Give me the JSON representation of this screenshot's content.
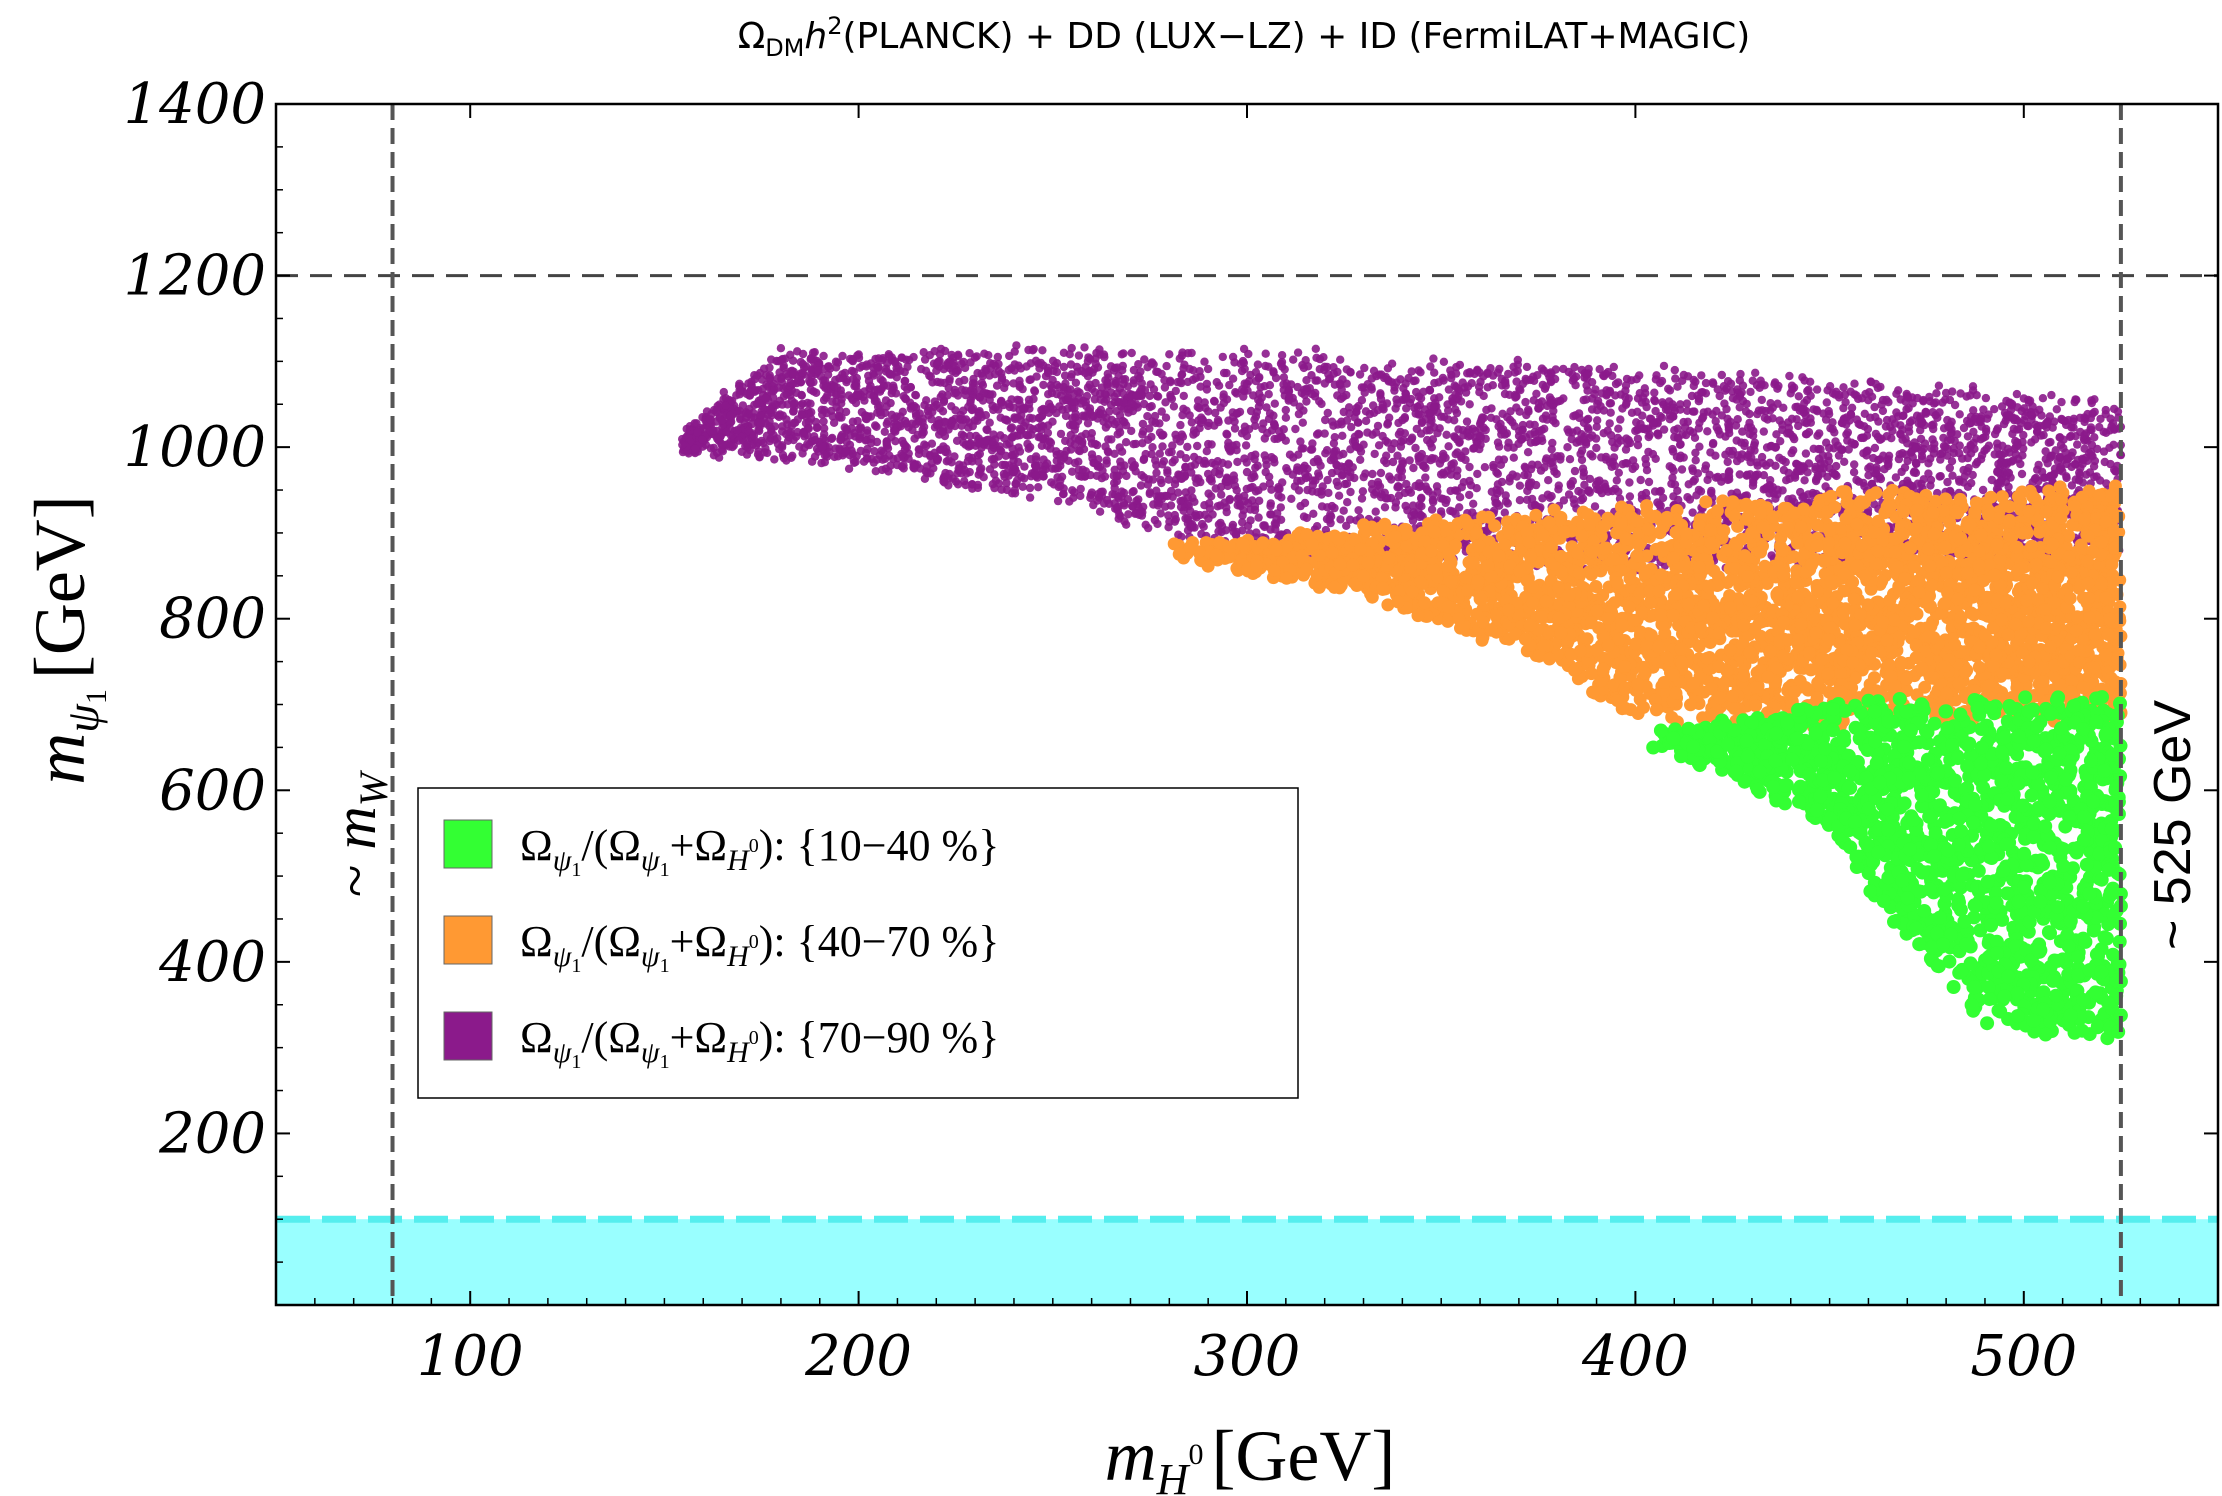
{
  "chart_data": {
    "type": "scatter",
    "title": "Ω_DM h² (PLANCK) + DD (LUX−LZ) + ID (FermiLAT+MAGIC)",
    "xlabel": "m_H⁰ [GeV]",
    "ylabel": "m_ψ₁ [GeV]",
    "xlim": [
      50,
      550
    ],
    "ylim": [
      0,
      1400
    ],
    "xticks": [
      100,
      200,
      300,
      400,
      500
    ],
    "yticks": [
      200,
      400,
      600,
      800,
      1000,
      1200,
      1400
    ],
    "grid": false,
    "legend_position": "center-left",
    "series": [
      {
        "name": "Ω_ψ₁/(Ω_ψ₁+Ω_H⁰): {10−40 %}",
        "color": "#33ff33",
        "x_range": [
          405,
          525
        ],
        "upper_edge": [
          [
            405,
            660
          ],
          [
            450,
            700
          ],
          [
            525,
            705
          ]
        ],
        "lower_edge": [
          [
            405,
            660
          ],
          [
            450,
            560
          ],
          [
            470,
            430
          ],
          [
            490,
            320
          ],
          [
            525,
            315
          ]
        ],
        "approx_points": 1600
      },
      {
        "name": "Ω_ψ₁/(Ω_ψ₁+Ω_H⁰): {40−70 %}",
        "color": "#ff9933",
        "x_range": [
          280,
          525
        ],
        "upper_edge": [
          [
            280,
            880
          ],
          [
            350,
            910
          ],
          [
            450,
            940
          ],
          [
            525,
            950
          ]
        ],
        "lower_edge": [
          [
            280,
            880
          ],
          [
            330,
            830
          ],
          [
            370,
            770
          ],
          [
            400,
            690
          ],
          [
            450,
            680
          ],
          [
            525,
            690
          ]
        ],
        "approx_points": 3500
      },
      {
        "name": "Ω_ψ₁/(Ω_ψ₁+Ω_H⁰): {70−90 %}",
        "color": "#8b1a8b",
        "x_range": [
          155,
          525
        ],
        "upper_edge": [
          [
            155,
            1010
          ],
          [
            180,
            1110
          ],
          [
            300,
            1110
          ],
          [
            400,
            1090
          ],
          [
            525,
            1050
          ]
        ],
        "lower_edge": [
          [
            155,
            1000
          ],
          [
            200,
            980
          ],
          [
            260,
            930
          ],
          [
            300,
            880
          ],
          [
            400,
            860
          ],
          [
            525,
            870
          ]
        ],
        "approx_points": 5000
      }
    ],
    "reference_lines": [
      {
        "orientation": "horizontal",
        "value": 1200,
        "style": "dashed"
      },
      {
        "orientation": "vertical",
        "value": 80,
        "style": "dashed",
        "label": "~ m_W"
      },
      {
        "orientation": "vertical",
        "value": 525,
        "style": "dashed",
        "label": "~ 525 GeV"
      }
    ],
    "excluded_band": {
      "ymin": 0,
      "ymax": 100,
      "color": "#99ffff",
      "edge_color": "#55eeee"
    }
  },
  "annotations": {
    "left_label_prefix": "~ ",
    "left_label_main": "m",
    "left_label_sub": "W",
    "right_label": "~ 525 GeV"
  }
}
